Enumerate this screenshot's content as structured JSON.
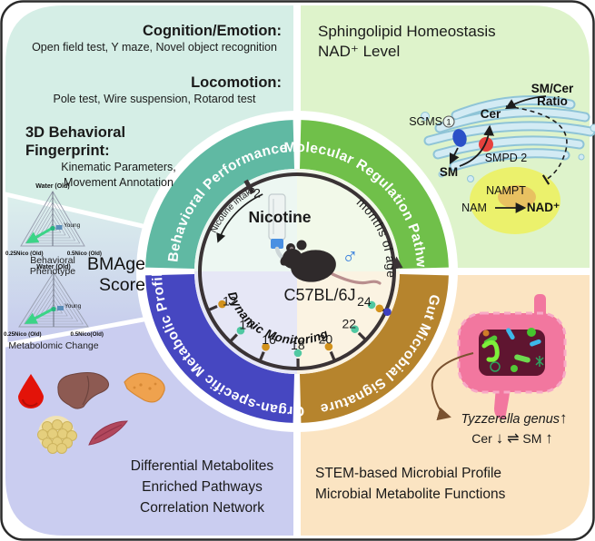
{
  "top_left": {
    "h1": "Cognition/Emotion:",
    "b1": "Open field test, Y maze, Novel object recognition",
    "h2": "Locomotion:",
    "b2": "Pole test, Wire suspension, Rotarod test",
    "h3": "3D Behavioral Fingerprint:",
    "b3a": "Kinematic Parameters,",
    "b3b": "Movement Annotation"
  },
  "top_right": {
    "h1": "Sphingolipid Homeostasis",
    "h2": "NAD⁺ Level"
  },
  "pathway": {
    "sgms": "SGMS",
    "sgms_num": "1",
    "cer": "Cer",
    "sm": "SM",
    "smpd": "SMPD 2",
    "ratio1": "SM/Cer",
    "ratio2": "Ratio",
    "nampt": "NAMPT",
    "nam": "NAM",
    "nad": "NAD⁺"
  },
  "bmage": {
    "line1": "BMAge",
    "line2": "Score",
    "radar1_caption": "Behavioral Phenotype",
    "radar2_caption": "Metabolomic Change",
    "axis_top": "Water (Old)",
    "axis_left": "0.25Nico (Old)",
    "axis_right1": "0.5Nico (Old)",
    "axis_right2": "0.5Nico(Old)",
    "young": "Young"
  },
  "bottom_left": {
    "lines": [
      "Differential Metabolites",
      "Enriched Pathways",
      "Correlation Network"
    ]
  },
  "bottom_right": {
    "line1": "STEM-based Microbial Profile",
    "line2": "Microbial Metabolite Functions",
    "tyzzerella": "Tyzzerella genus",
    "up": "↑",
    "cer": "Cer",
    "down": "↓",
    "harpoons": "⇌",
    "sm": "SM"
  },
  "wheel": {
    "arcs": [
      {
        "label": "Behavioral Performance"
      },
      {
        "label": "Molecular Regulation Pathway"
      },
      {
        "label": "Organ-specific Metabolic Profile"
      },
      {
        "label": "Gut Microbial Signature"
      }
    ],
    "nicotine": "Nicotine",
    "strain": "C57BL/6J",
    "male": "♂",
    "intake": "Nicotine intake",
    "monitoring": "Dynamic Monitoring",
    "age_axis": "months of age",
    "months": [
      {
        "label": "2",
        "angle": 240.6,
        "major": true,
        "label_angle": 243,
        "label_r": 97,
        "dots": []
      },
      {
        "label": "12",
        "angle": 156.4,
        "dots": [
          "orange"
        ]
      },
      {
        "label": "14",
        "angle": 133.6,
        "dots": [
          "teal"
        ]
      },
      {
        "label": "16",
        "angle": 112.5,
        "dots": [
          "orange"
        ]
      },
      {
        "label": "18",
        "angle": 89.4,
        "dots": [
          "teal"
        ]
      },
      {
        "label": "20",
        "angle": 67.2,
        "dots": [
          "orange"
        ]
      },
      {
        "label": "22",
        "angle": 45,
        "dots": [
          "teal"
        ]
      },
      {
        "label": "24",
        "angle": 24.2,
        "dots": [
          "teal",
          "orange",
          "blue"
        ]
      }
    ]
  },
  "colors": {
    "arc_teal": "#60b9a3",
    "arc_green": "#70c04a",
    "arc_blue": "#4647c1",
    "arc_gold": "#b6842d",
    "dot_orange": "#d2921c",
    "dot_teal": "#50c8a2",
    "dot_blue": "#3c3fc0",
    "quad_mint": "#d5eee6",
    "quad_green": "#def3cb",
    "quad_lavender": "#cacdf0",
    "quad_peach": "#fbe4c2",
    "male_blue": "#3b82dd"
  }
}
